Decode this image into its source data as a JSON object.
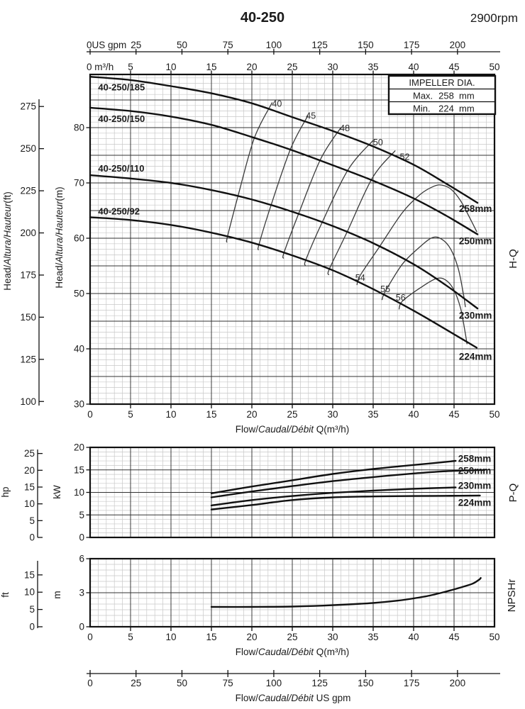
{
  "header": {
    "title": "40-250",
    "rpm": "2900rpm"
  },
  "top_axis": {
    "gpm_prefix": "0US gpm",
    "gpm_ticks": [
      25,
      50,
      75,
      100,
      125,
      150,
      175,
      200
    ],
    "m3h_prefix": "0 m³/h",
    "m3h_ticks": [
      5,
      10,
      15,
      20,
      25,
      30,
      35,
      40,
      45,
      50
    ]
  },
  "impeller_box": {
    "title": "IMPELLER DIA.",
    "rows": [
      {
        "label": "Max.",
        "value": "258",
        "unit": "mm"
      },
      {
        "label": "Min.",
        "value": "224",
        "unit": "mm"
      }
    ]
  },
  "bottom_axis": {
    "ticks_gpm": [
      0,
      25,
      50,
      75,
      100,
      125,
      150,
      175,
      200
    ],
    "label_parts": [
      "Flow/",
      "Caudal/Débit",
      "  US gpm"
    ]
  },
  "chart_data": [
    {
      "type": "line",
      "title": "H-Q",
      "xlabel_parts": [
        "Flow/",
        "Caudal/Débit",
        " Q(m³/h)"
      ],
      "ylabel_ft_parts": [
        "Head/",
        "Altura/Hauteur",
        "(ft)"
      ],
      "ylabel_m_parts": [
        "Head/",
        "Altura/Hauteur",
        "(m)"
      ],
      "xlim": [
        0,
        50
      ],
      "ylim_m": [
        30,
        89.6
      ],
      "x_ticks": [
        0,
        5,
        10,
        15,
        20,
        25,
        30,
        35,
        40,
        45,
        50
      ],
      "y_ticks_m": [
        30,
        40,
        50,
        60,
        70,
        80
      ],
      "y_ticks_ft": [
        100,
        125,
        150,
        175,
        200,
        225,
        250,
        275
      ],
      "series": [
        {
          "name": "258mm",
          "model": "40-250/185",
          "model_label_at": [
            1.0,
            87.3
          ],
          "dia_label_at": [
            45.6,
            65.3
          ],
          "points": [
            [
              0,
              89.2
            ],
            [
              5,
              88.6
            ],
            [
              10,
              87.5
            ],
            [
              15,
              86.2
            ],
            [
              20,
              84.4
            ],
            [
              25,
              81.9
            ],
            [
              30,
              79.4
            ],
            [
              35,
              76.6
            ],
            [
              40,
              73.3
            ],
            [
              44,
              69.9
            ],
            [
              47.9,
              66.4
            ]
          ]
        },
        {
          "name": "250mm",
          "model": "40-250/150",
          "model_label_at": [
            1.0,
            81.6
          ],
          "dia_label_at": [
            45.6,
            59.5
          ],
          "points": [
            [
              0,
              83.6
            ],
            [
              5,
              83.0
            ],
            [
              10,
              82.0
            ],
            [
              15,
              80.5
            ],
            [
              20,
              78.3
            ],
            [
              25,
              75.9
            ],
            [
              30,
              73.2
            ],
            [
              35,
              70.4
            ],
            [
              40,
              67.2
            ],
            [
              44,
              64.1
            ],
            [
              47.9,
              60.7
            ]
          ]
        },
        {
          "name": "230mm",
          "model": "40-250/110",
          "model_label_at": [
            1.0,
            72.6
          ],
          "dia_label_at": [
            45.6,
            46.0
          ],
          "points": [
            [
              0,
              71.4
            ],
            [
              5,
              70.8
            ],
            [
              10,
              70.0
            ],
            [
              15,
              68.7
            ],
            [
              20,
              67.0
            ],
            [
              25,
              64.8
            ],
            [
              30,
              62.2
            ],
            [
              35,
              59.1
            ],
            [
              40,
              55.3
            ],
            [
              44,
              51.5
            ],
            [
              47.9,
              47.3
            ]
          ]
        },
        {
          "name": "224mm",
          "model": "40-250/92",
          "model_label_at": [
            1.0,
            64.9
          ],
          "dia_label_at": [
            45.6,
            38.6
          ],
          "points": [
            [
              0,
              63.8
            ],
            [
              5,
              63.3
            ],
            [
              10,
              62.4
            ],
            [
              15,
              61.0
            ],
            [
              20,
              59.2
            ],
            [
              25,
              56.9
            ],
            [
              30,
              54.2
            ],
            [
              35,
              50.8
            ],
            [
              40,
              46.9
            ],
            [
              44,
              43.5
            ],
            [
              47.8,
              40.2
            ]
          ]
        }
      ],
      "efficiency_contours": [
        {
          "label": "40",
          "label_at": [
            23.1,
            84.3
          ],
          "points": [
            [
              22.5,
              84.5
            ],
            [
              20.3,
              78.1
            ],
            [
              18.3,
              67.7
            ],
            [
              17.0,
              60.4
            ],
            [
              16.9,
              59.3
            ]
          ]
        },
        {
          "label": "45",
          "label_at": [
            27.3,
            82.1
          ],
          "points": [
            [
              26.9,
              82.1
            ],
            [
              24.8,
              76.2
            ],
            [
              22.4,
              66.1
            ],
            [
              20.9,
              59.0
            ],
            [
              20.8,
              57.9
            ]
          ]
        },
        {
          "label": "48",
          "label_at": [
            31.5,
            79.9
          ],
          "points": [
            [
              31.0,
              80.0
            ],
            [
              28.5,
              74.3
            ],
            [
              25.8,
              64.5
            ],
            [
              24.0,
              57.5
            ],
            [
              23.9,
              56.4
            ]
          ]
        },
        {
          "label": "50",
          "label_at": [
            35.6,
            77.3
          ],
          "points": [
            [
              35.0,
              77.7
            ],
            [
              31.9,
              72.4
            ],
            [
              28.7,
              62.9
            ],
            [
              26.7,
              56.2
            ],
            [
              26.6,
              55.1
            ]
          ]
        },
        {
          "label": "52",
          "label_at": [
            38.9,
            74.7
          ],
          "points": [
            [
              37.7,
              75.8
            ],
            [
              34.9,
              70.9
            ],
            [
              31.8,
              61.2
            ],
            [
              29.6,
              54.5
            ],
            [
              29.5,
              53.4
            ]
          ]
        },
        {
          "label": "54",
          "label_at": [
            33.4,
            52.8
          ],
          "points": [
            [
              33.0,
              51.6
            ],
            [
              33.4,
              53.3
            ],
            [
              35.8,
              58.5
            ],
            [
              38.6,
              64.6
            ],
            [
              40.8,
              67.9
            ],
            [
              42.5,
              69.4
            ],
            [
              43.5,
              69.6
            ],
            [
              44.6,
              68.9
            ],
            [
              45.8,
              66.8
            ],
            [
              46.9,
              63.8
            ],
            [
              47.8,
              61.2
            ]
          ]
        },
        {
          "label": "55",
          "label_at": [
            36.5,
            50.8
          ],
          "points": [
            [
              36.1,
              48.9
            ],
            [
              36.5,
              50.4
            ],
            [
              38.6,
              55.3
            ],
            [
              40.6,
              58.2
            ],
            [
              42.3,
              60.1
            ],
            [
              43.5,
              59.8
            ],
            [
              44.6,
              58.0
            ],
            [
              45.5,
              54.6
            ],
            [
              46.1,
              50.4
            ],
            [
              46.4,
              47.6
            ]
          ]
        },
        {
          "label": "56",
          "label_at": [
            38.4,
            49.2
          ],
          "points": [
            [
              38.2,
              47.2
            ],
            [
              38.6,
              48.6
            ],
            [
              40.8,
              51.0
            ],
            [
              42.8,
              52.7
            ],
            [
              44.0,
              52.4
            ],
            [
              45.0,
              50.6
            ],
            [
              45.8,
              47.4
            ],
            [
              46.3,
              43.6
            ],
            [
              46.6,
              40.9
            ]
          ]
        }
      ]
    },
    {
      "type": "line",
      "title": "P-Q",
      "ylabel_kw": "kW",
      "ylabel_hp": "hp",
      "xlim": [
        0,
        50
      ],
      "ylim_kw": [
        0,
        20
      ],
      "y_ticks_kw": [
        0,
        5,
        10,
        15,
        20
      ],
      "y_ticks_hp": [
        0,
        5,
        10,
        15,
        20,
        25
      ],
      "series": [
        {
          "name": "258mm",
          "dia_label_at": [
            45.5,
            17.5
          ],
          "points": [
            [
              15,
              9.8
            ],
            [
              20,
              11.3
            ],
            [
              25,
              12.7
            ],
            [
              30,
              14.1
            ],
            [
              35,
              15.2
            ],
            [
              40,
              16.1
            ],
            [
              43,
              16.6
            ],
            [
              45.2,
              17.0
            ]
          ]
        },
        {
          "name": "250mm",
          "dia_label_at": [
            45.5,
            14.8
          ],
          "points": [
            [
              15,
              8.9
            ],
            [
              20,
              10.2
            ],
            [
              25,
              11.4
            ],
            [
              30,
              12.5
            ],
            [
              35,
              13.4
            ],
            [
              40,
              14.2
            ],
            [
              44,
              14.7
            ],
            [
              48.8,
              15.0
            ]
          ]
        },
        {
          "name": "230mm",
          "dia_label_at": [
            45.5,
            11.5
          ],
          "points": [
            [
              15,
              7.1
            ],
            [
              20,
              8.3
            ],
            [
              25,
              9.2
            ],
            [
              30,
              9.9
            ],
            [
              35,
              10.4
            ],
            [
              40,
              10.8
            ],
            [
              45.2,
              11.1
            ]
          ]
        },
        {
          "name": "224mm",
          "dia_label_at": [
            45.5,
            7.7
          ],
          "points": [
            [
              15,
              6.2
            ],
            [
              20,
              7.2
            ],
            [
              25,
              8.3
            ],
            [
              30,
              8.9
            ],
            [
              35,
              9.1
            ],
            [
              40,
              9.2
            ],
            [
              44,
              9.25
            ],
            [
              48.2,
              9.3
            ]
          ]
        }
      ]
    },
    {
      "type": "line",
      "title": "NPSHr",
      "ylabel_m": "m",
      "ylabel_ft": "ft",
      "xlabel_parts": [
        "Flow/",
        "Caudal/Débit",
        " Q(m³/h)"
      ],
      "xlim": [
        0,
        50
      ],
      "ylim_m": [
        0,
        6
      ],
      "x_ticks": [
        0,
        5,
        10,
        15,
        20,
        25,
        30,
        35,
        40,
        45,
        50
      ],
      "y_ticks_m": [
        0,
        3,
        6
      ],
      "y_ticks_ft": [
        0,
        5,
        10,
        15
      ],
      "series": [
        {
          "name": "NPSHr",
          "points": [
            [
              15,
              1.75
            ],
            [
              20,
              1.75
            ],
            [
              25,
              1.78
            ],
            [
              30,
              1.9
            ],
            [
              35,
              2.1
            ],
            [
              38,
              2.3
            ],
            [
              40,
              2.5
            ],
            [
              42,
              2.75
            ],
            [
              44,
              3.1
            ],
            [
              46,
              3.5
            ],
            [
              47.3,
              3.8
            ],
            [
              48.1,
              4.15
            ],
            [
              48.3,
              4.3
            ]
          ]
        }
      ]
    }
  ]
}
